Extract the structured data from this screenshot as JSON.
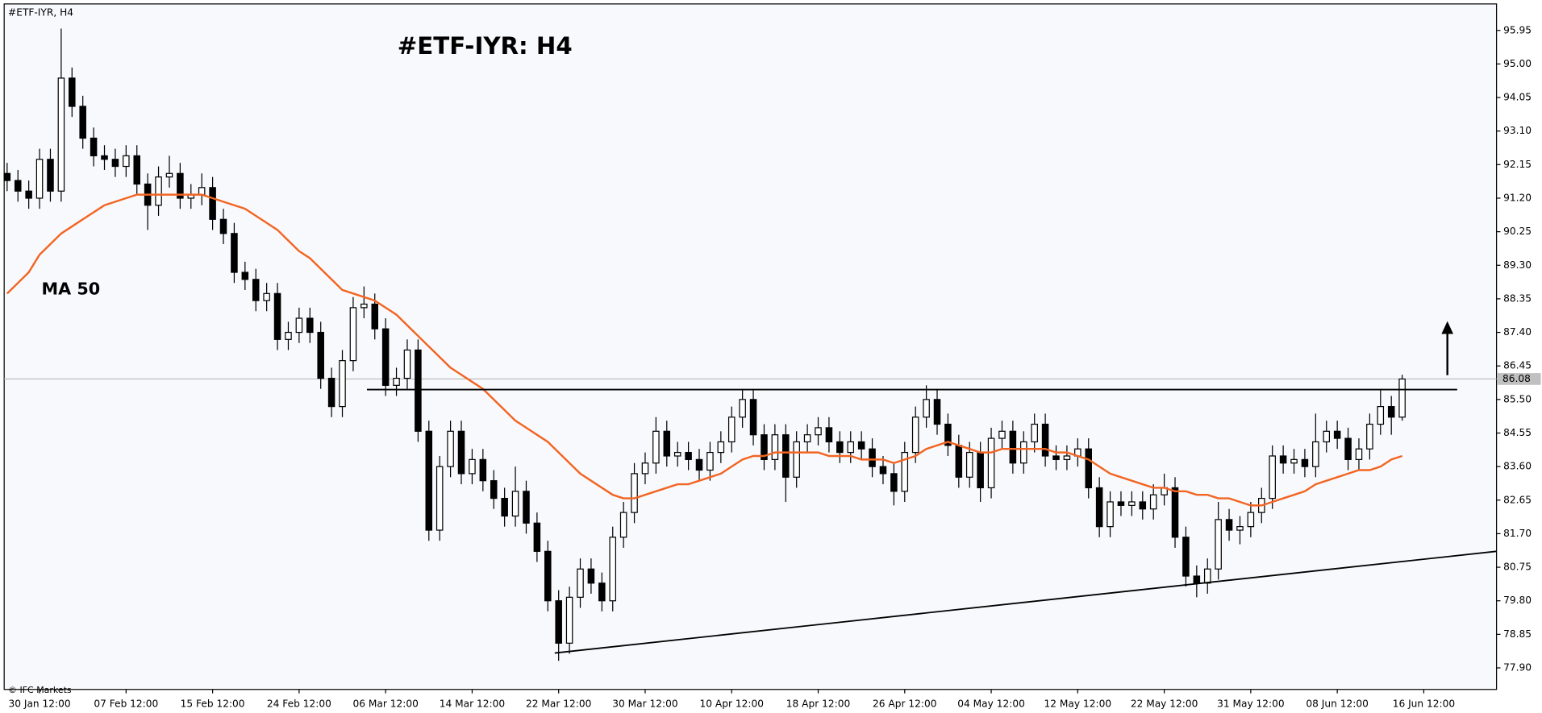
{
  "chart_data": {
    "type": "candlestick",
    "title": "#ETF-IYR: H4",
    "symbol_label": "#ETF-IYR, H4",
    "watermark": "© IFC Markets",
    "categories": [
      null,
      null,
      null,
      "30 Jan 12:00",
      null,
      null,
      null,
      null,
      null,
      null,
      null,
      "07 Feb 12:00",
      null,
      null,
      null,
      null,
      null,
      null,
      null,
      "15 Feb 12:00",
      null,
      null,
      null,
      null,
      null,
      null,
      null,
      "24 Feb 12:00",
      null,
      null,
      null,
      null,
      null,
      null,
      null,
      "06 Mar 12:00",
      null,
      null,
      null,
      null,
      null,
      null,
      null,
      "14 Mar 12:00",
      null,
      null,
      null,
      null,
      null,
      null,
      null,
      "22 Mar 12:00",
      null,
      null,
      null,
      null,
      null,
      null,
      null,
      "30 Mar 12:00",
      null,
      null,
      null,
      null,
      null,
      null,
      null,
      "10 Apr 12:00",
      null,
      null,
      null,
      null,
      null,
      null,
      null,
      "18 Apr 12:00",
      null,
      null,
      null,
      null,
      null,
      null,
      null,
      "26 Apr 12:00",
      null,
      null,
      null,
      null,
      null,
      null,
      null,
      "04 May 12:00",
      null,
      null,
      null,
      null,
      null,
      null,
      null,
      "12 May 12:00",
      null,
      null,
      null,
      null,
      null,
      null,
      null,
      "22 May 12:00",
      null,
      null,
      null,
      null,
      null,
      null,
      null,
      "31 May 12:00",
      null,
      null,
      null,
      null,
      null,
      null,
      null,
      "08 Jun 12:00",
      null,
      null,
      null,
      null,
      null,
      null,
      null,
      "16 Jun 12:00"
    ],
    "open": [
      91.9,
      91.7,
      91.4,
      91.2,
      92.3,
      91.4,
      94.6,
      93.8,
      92.9,
      92.4,
      92.3,
      92.1,
      92.4,
      91.6,
      91.0,
      91.8,
      91.9,
      91.2,
      91.3,
      91.5,
      90.6,
      90.2,
      89.1,
      88.9,
      88.3,
      88.5,
      87.2,
      87.4,
      87.8,
      87.4,
      86.1,
      85.3,
      86.6,
      88.1,
      88.2,
      87.5,
      85.9,
      86.1,
      86.9,
      84.6,
      81.8,
      83.6,
      84.6,
      83.4,
      83.8,
      83.2,
      82.7,
      82.2,
      82.9,
      82.0,
      81.2,
      79.8,
      78.6,
      79.9,
      80.7,
      80.3,
      79.8,
      81.6,
      82.3,
      83.4,
      83.7,
      84.6,
      83.9,
      84.0,
      83.8,
      83.5,
      84.0,
      84.3,
      85.0,
      85.5,
      84.5,
      83.8,
      84.5,
      83.3,
      84.3,
      84.5,
      84.7,
      84.3,
      84.0,
      84.3,
      84.1,
      83.6,
      83.4,
      82.9,
      84.0,
      85.0,
      85.5,
      84.8,
      84.2,
      83.3,
      84.0,
      83.0,
      84.4,
      84.6,
      83.7,
      84.3,
      84.8,
      83.9,
      83.8,
      83.9,
      84.1,
      83.0,
      81.9,
      82.6,
      82.5,
      82.6,
      82.4,
      82.8,
      83.0,
      81.6,
      80.5,
      80.3,
      80.7,
      82.1,
      81.8,
      81.9,
      82.3,
      82.7,
      83.9,
      83.7,
      83.8,
      83.6,
      84.3,
      84.6,
      84.4,
      83.8,
      84.1,
      84.8,
      85.3,
      85.0,
      null,
      null
    ],
    "high": [
      92.2,
      92.0,
      91.7,
      92.6,
      92.6,
      96.0,
      94.9,
      94.1,
      93.2,
      92.7,
      92.6,
      92.7,
      92.7,
      91.9,
      92.1,
      92.4,
      92.2,
      91.6,
      91.9,
      91.8,
      90.9,
      90.5,
      89.4,
      89.2,
      88.8,
      88.8,
      87.7,
      88.1,
      88.1,
      87.7,
      86.4,
      86.9,
      88.4,
      88.7,
      88.5,
      87.8,
      86.4,
      87.2,
      87.2,
      84.9,
      83.9,
      84.9,
      84.9,
      84.1,
      84.1,
      83.5,
      83.0,
      83.6,
      83.2,
      82.3,
      81.5,
      80.1,
      80.2,
      81.0,
      81.0,
      80.6,
      81.9,
      82.6,
      83.7,
      84.0,
      85.0,
      84.9,
      84.3,
      84.3,
      84.1,
      84.3,
      84.6,
      85.3,
      85.8,
      85.8,
      84.8,
      84.8,
      84.8,
      84.6,
      84.8,
      85.0,
      85.0,
      84.6,
      84.6,
      84.6,
      84.4,
      83.9,
      83.7,
      84.3,
      85.3,
      85.9,
      85.8,
      85.1,
      84.5,
      84.3,
      84.3,
      84.7,
      84.9,
      84.9,
      84.6,
      85.1,
      85.1,
      84.2,
      84.2,
      84.4,
      84.4,
      83.3,
      82.9,
      82.9,
      82.9,
      82.9,
      83.1,
      83.4,
      83.3,
      81.9,
      80.8,
      81.0,
      82.6,
      82.4,
      82.2,
      82.6,
      83.0,
      84.2,
      84.2,
      84.1,
      84.1,
      85.1,
      84.9,
      84.9,
      84.7,
      84.4,
      85.1,
      85.8,
      85.6,
      86.2,
      null,
      null
    ],
    "low": [
      91.4,
      91.1,
      90.9,
      90.9,
      91.1,
      91.1,
      93.5,
      92.6,
      92.1,
      92.0,
      91.8,
      91.8,
      91.3,
      90.3,
      90.7,
      91.5,
      90.9,
      90.9,
      91.0,
      90.3,
      89.9,
      88.8,
      88.6,
      88.0,
      88.0,
      86.9,
      86.9,
      87.1,
      87.1,
      85.8,
      85.0,
      85.0,
      86.3,
      87.8,
      87.2,
      85.6,
      85.6,
      85.8,
      84.3,
      81.5,
      81.5,
      83.3,
      83.1,
      83.1,
      82.9,
      82.4,
      81.9,
      81.9,
      81.7,
      80.9,
      79.5,
      78.1,
      78.3,
      79.6,
      80.0,
      79.5,
      79.5,
      81.3,
      82.0,
      83.1,
      83.4,
      83.6,
      83.6,
      83.5,
      83.2,
      83.2,
      83.7,
      84.0,
      84.7,
      84.2,
      83.5,
      83.5,
      82.6,
      83.0,
      84.0,
      84.2,
      84.0,
      83.7,
      83.7,
      83.8,
      83.3,
      83.1,
      82.5,
      82.6,
      83.7,
      84.7,
      84.5,
      83.9,
      83.0,
      83.0,
      82.6,
      82.7,
      84.1,
      83.4,
      83.4,
      84.0,
      83.6,
      83.5,
      83.5,
      83.6,
      82.7,
      81.6,
      81.6,
      82.2,
      82.2,
      82.1,
      82.1,
      82.5,
      81.3,
      80.2,
      79.9,
      80.0,
      80.4,
      81.5,
      81.4,
      81.6,
      82.0,
      82.4,
      83.4,
      83.4,
      83.3,
      83.3,
      84.0,
      84.1,
      83.5,
      83.5,
      83.8,
      84.5,
      84.5,
      84.9,
      null,
      null
    ],
    "close": [
      91.7,
      91.4,
      91.2,
      92.3,
      91.4,
      94.6,
      93.8,
      92.9,
      92.4,
      92.3,
      92.1,
      92.4,
      91.6,
      91.0,
      91.8,
      91.9,
      91.2,
      91.3,
      91.5,
      90.6,
      90.2,
      89.1,
      88.9,
      88.3,
      88.5,
      87.2,
      87.4,
      87.8,
      87.4,
      86.1,
      85.3,
      86.6,
      88.1,
      88.2,
      87.5,
      85.9,
      86.1,
      86.9,
      84.6,
      81.8,
      83.6,
      84.6,
      83.4,
      83.8,
      83.2,
      82.7,
      82.2,
      82.9,
      82.0,
      81.2,
      79.8,
      78.6,
      79.9,
      80.7,
      80.3,
      79.8,
      81.6,
      82.3,
      83.4,
      83.7,
      84.6,
      83.9,
      84.0,
      83.8,
      83.5,
      84.0,
      84.3,
      85.0,
      85.5,
      84.5,
      83.8,
      84.5,
      83.3,
      84.3,
      84.5,
      84.7,
      84.3,
      84.0,
      84.3,
      84.1,
      83.6,
      83.4,
      82.9,
      84.0,
      85.0,
      85.5,
      84.8,
      84.2,
      83.3,
      84.0,
      83.0,
      84.4,
      84.6,
      83.7,
      84.3,
      84.8,
      83.9,
      83.8,
      83.9,
      84.1,
      83.0,
      81.9,
      82.6,
      82.5,
      82.6,
      82.4,
      82.8,
      83.0,
      81.6,
      80.5,
      80.3,
      80.7,
      82.1,
      81.8,
      81.9,
      82.3,
      82.7,
      83.9,
      83.7,
      83.8,
      83.6,
      84.3,
      84.6,
      84.4,
      83.8,
      84.1,
      84.8,
      85.3,
      85.0,
      86.08,
      null,
      null
    ],
    "up_color": "#ffffff",
    "down_color": "#000000",
    "ma": {
      "name": "MA 50",
      "color": "#f26522",
      "values": [
        88.5,
        88.8,
        89.1,
        89.6,
        89.9,
        90.2,
        90.4,
        90.6,
        90.8,
        91.0,
        91.1,
        91.2,
        91.3,
        91.3,
        91.3,
        91.3,
        91.3,
        91.3,
        91.3,
        91.2,
        91.1,
        91.0,
        90.9,
        90.7,
        90.5,
        90.3,
        90.0,
        89.7,
        89.5,
        89.2,
        88.9,
        88.6,
        88.5,
        88.4,
        88.3,
        88.1,
        87.9,
        87.6,
        87.3,
        87.0,
        86.7,
        86.4,
        86.2,
        86.0,
        85.8,
        85.5,
        85.2,
        84.9,
        84.7,
        84.5,
        84.3,
        84.0,
        83.7,
        83.4,
        83.2,
        83.0,
        82.8,
        82.7,
        82.7,
        82.8,
        82.9,
        83.0,
        83.1,
        83.1,
        83.2,
        83.3,
        83.4,
        83.6,
        83.8,
        83.9,
        83.9,
        84.0,
        84.0,
        84.0,
        84.0,
        84.0,
        83.9,
        83.9,
        83.9,
        83.8,
        83.8,
        83.8,
        83.7,
        83.8,
        83.9,
        84.1,
        84.2,
        84.3,
        84.2,
        84.1,
        84.0,
        84.0,
        84.1,
        84.1,
        84.1,
        84.1,
        84.1,
        84.0,
        84.0,
        83.9,
        83.8,
        83.6,
        83.4,
        83.3,
        83.2,
        83.1,
        83.0,
        83.0,
        82.9,
        82.9,
        82.8,
        82.8,
        82.7,
        82.7,
        82.6,
        82.5,
        82.5,
        82.6,
        82.7,
        82.8,
        82.9,
        83.1,
        83.2,
        83.3,
        83.4,
        83.5,
        83.5,
        83.6,
        83.8,
        83.9,
        null,
        null
      ]
    },
    "last_price": 86.08,
    "resistance": 85.78,
    "support": [
      78.32,
      81.2
    ],
    "ylim": [
      77.29,
      96.7
    ],
    "yticks": [
      95.95,
      {
        "value": 95,
        "label": "95.00"
      },
      94.05,
      {
        "value": 93.1,
        "label": "93.10"
      },
      92.15,
      {
        "value": 91.2,
        "label": "91.20"
      },
      90.25,
      {
        "value": 89.3,
        "label": "89.30"
      },
      88.35,
      {
        "value": 87.4,
        "label": "87.40"
      },
      86.45,
      {
        "value": 85.5,
        "label": "85.50"
      },
      84.55,
      {
        "value": 83.6,
        "label": "83.60"
      },
      82.65,
      {
        "value": 81.7,
        "label": "81.70"
      },
      80.75,
      {
        "value": 79.8,
        "label": "79.80"
      },
      78.85,
      {
        "value": 77.9,
        "label": "77.90"
      }
    ]
  }
}
